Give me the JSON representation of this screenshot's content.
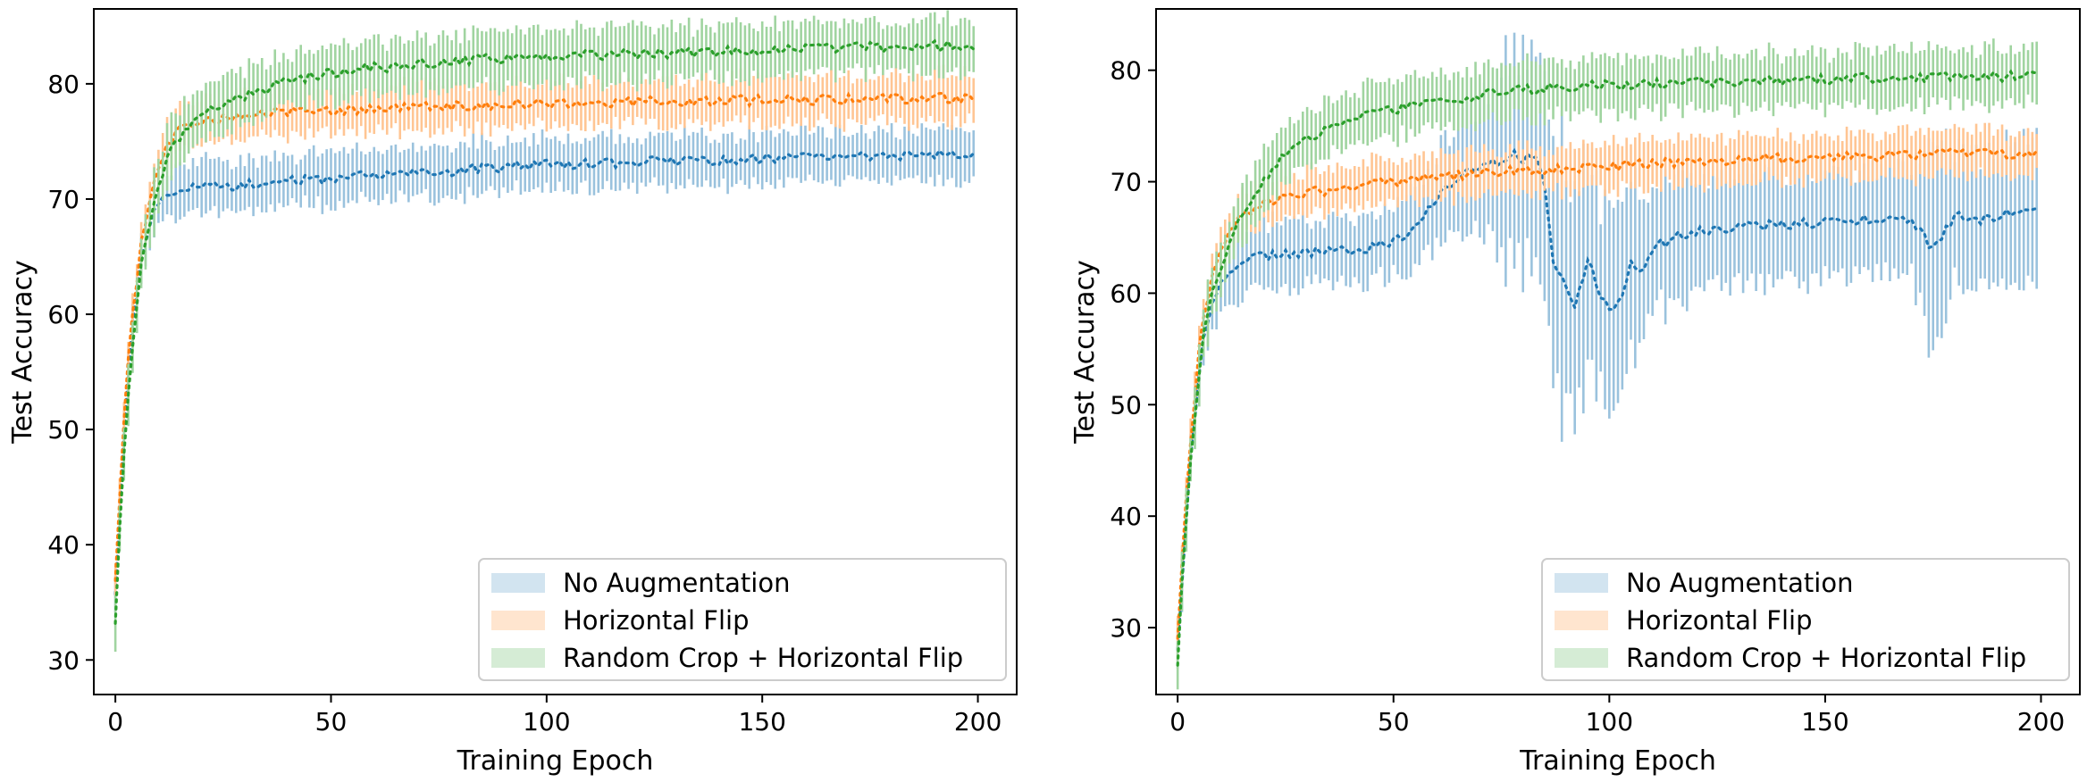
{
  "chart_data": [
    {
      "type": "line",
      "xlabel": "Training Epoch",
      "ylabel": "Test Accuracy",
      "xlim": [
        -5,
        209
      ],
      "ylim": [
        27,
        86.5
      ],
      "xticks": [
        0,
        50,
        100,
        150,
        200
      ],
      "yticks": [
        30,
        40,
        50,
        60,
        70,
        80
      ],
      "grid": false,
      "legend_position": "lower-right",
      "series": [
        {
          "name": "No Augmentation",
          "color": "#1f77b4",
          "x": [
            0,
            1,
            2,
            3,
            4,
            5,
            6,
            8,
            10,
            12,
            15,
            20,
            30,
            40,
            50,
            60,
            70,
            80,
            90,
            100,
            110,
            120,
            130,
            140,
            150,
            160,
            170,
            180,
            190,
            199
          ],
          "mean": [
            36,
            43,
            50,
            55,
            59,
            62,
            65,
            68,
            70,
            70.5,
            70.7,
            71,
            71.3,
            71.5,
            71.8,
            72,
            72.2,
            72.5,
            72.8,
            73,
            73.1,
            73.2,
            73.3,
            73.4,
            73.5,
            73.6,
            73.7,
            73.8,
            73.9,
            74
          ],
          "spread": [
            1.5,
            1.5,
            1.5,
            1.5,
            1.5,
            1.5,
            1.8,
            2,
            2,
            2.2,
            2.2,
            2.2,
            2.2,
            2.2,
            2.2,
            2.2,
            2.2,
            2.2,
            2.2,
            2.2,
            2.2,
            2.2,
            2.2,
            2.2,
            2.2,
            2.2,
            2.2,
            2.2,
            2.2,
            2.2
          ]
        },
        {
          "name": "Horizontal Flip",
          "color": "#ff7f0e",
          "x": [
            0,
            1,
            2,
            3,
            4,
            5,
            6,
            8,
            10,
            12,
            15,
            20,
            30,
            40,
            50,
            60,
            70,
            80,
            90,
            100,
            110,
            120,
            130,
            140,
            150,
            160,
            170,
            180,
            190,
            199
          ],
          "mean": [
            37,
            44,
            51,
            56,
            60,
            63,
            66,
            70,
            73,
            74.5,
            76,
            76.8,
            77.2,
            77.5,
            77.7,
            77.9,
            78,
            78.1,
            78.2,
            78.3,
            78.4,
            78.4,
            78.5,
            78.5,
            78.6,
            78.6,
            78.7,
            78.7,
            78.8,
            78.8
          ],
          "spread": [
            1.5,
            1.5,
            1.5,
            1.5,
            1.5,
            1.5,
            1.8,
            2,
            2,
            2,
            2,
            2,
            2,
            2,
            2,
            2,
            2,
            2,
            2,
            2,
            2,
            2,
            2,
            2,
            2,
            2,
            2,
            2,
            2,
            2
          ]
        },
        {
          "name": "Random Crop + Horizontal Flip",
          "color": "#2ca02c",
          "x": [
            0,
            1,
            2,
            3,
            4,
            5,
            6,
            8,
            10,
            12,
            15,
            20,
            30,
            40,
            50,
            60,
            70,
            80,
            90,
            100,
            110,
            120,
            130,
            140,
            150,
            160,
            170,
            180,
            190,
            199
          ],
          "mean": [
            33,
            41,
            48,
            53,
            57,
            61,
            64,
            68,
            71,
            73.5,
            75.5,
            77.5,
            79,
            80.2,
            81,
            81.4,
            81.7,
            82,
            82.2,
            82.4,
            82.5,
            82.6,
            82.7,
            82.8,
            82.9,
            83,
            83.1,
            83.2,
            83.3,
            83.3
          ],
          "spread": [
            3,
            2.5,
            2.5,
            2.5,
            2.5,
            2.5,
            2.5,
            2.5,
            2.5,
            2.5,
            2.5,
            2.3,
            2.3,
            2.3,
            2.3,
            2.3,
            2.3,
            2.3,
            2.3,
            2.3,
            2.3,
            2.3,
            2.3,
            2.3,
            2.3,
            2.3,
            2.3,
            2.3,
            2.3,
            2.3
          ]
        }
      ]
    },
    {
      "type": "line",
      "xlabel": "Training Epoch",
      "ylabel": "Test Accuracy",
      "xlim": [
        -5,
        209
      ],
      "ylim": [
        24,
        85.5
      ],
      "xticks": [
        0,
        50,
        100,
        150,
        200
      ],
      "yticks": [
        30,
        40,
        50,
        60,
        70,
        80
      ],
      "grid": false,
      "legend_position": "lower-right",
      "series": [
        {
          "name": "No Augmentation",
          "color": "#1f77b4",
          "x": [
            0,
            1,
            2,
            3,
            4,
            5,
            6,
            8,
            10,
            12,
            15,
            20,
            25,
            30,
            40,
            50,
            55,
            60,
            65,
            70,
            73,
            75,
            78,
            80,
            83,
            85,
            87,
            90,
            92,
            95,
            98,
            100,
            103,
            105,
            108,
            110,
            115,
            120,
            125,
            130,
            140,
            150,
            160,
            170,
            175,
            180,
            185,
            190,
            195,
            199
          ],
          "mean": [
            28,
            34,
            40,
            45,
            49,
            53,
            56,
            59,
            61,
            62,
            62.8,
            63.3,
            63.5,
            63.6,
            63.8,
            64.5,
            66,
            68.5,
            70.5,
            71.5,
            72,
            71.5,
            72.5,
            72,
            72.3,
            70,
            63,
            61,
            59,
            63,
            60,
            58.5,
            60,
            63,
            62,
            64,
            65,
            65.5,
            65.8,
            66,
            66.2,
            66.4,
            66.6,
            66.5,
            64,
            67,
            66.5,
            67,
            67.5,
            68
          ],
          "spread": [
            2,
            2,
            2,
            2,
            2,
            2,
            2,
            2.5,
            2.5,
            3,
            3,
            3,
            3,
            3,
            3,
            3,
            3.5,
            4,
            5,
            6,
            7,
            10,
            9,
            10,
            9,
            10,
            12,
            12,
            10,
            10,
            8,
            9,
            8,
            8,
            7,
            6,
            6,
            5,
            5,
            5,
            5,
            5,
            5,
            5,
            9,
            6,
            6,
            7,
            7,
            6
          ]
        },
        {
          "name": "Horizontal Flip",
          "color": "#ff7f0e",
          "x": [
            0,
            1,
            2,
            3,
            4,
            5,
            6,
            8,
            10,
            12,
            15,
            20,
            25,
            30,
            40,
            50,
            60,
            70,
            80,
            90,
            100,
            110,
            120,
            130,
            140,
            150,
            160,
            170,
            180,
            190,
            199
          ],
          "mean": [
            29,
            36,
            42,
            47,
            51,
            55,
            58,
            61.5,
            64,
            65.5,
            67,
            68,
            68.7,
            69,
            69.5,
            70,
            70.4,
            70.7,
            71,
            71.2,
            71.4,
            71.6,
            71.8,
            72,
            72.1,
            72.2,
            72.3,
            72.4,
            72.5,
            72.5,
            72.6
          ],
          "spread": [
            2,
            2,
            2,
            2,
            2,
            2,
            2,
            2,
            2,
            2,
            2,
            2,
            2,
            2,
            2,
            2,
            2,
            2,
            2,
            2,
            2,
            2,
            2,
            2,
            2,
            2,
            2,
            2,
            2,
            2,
            2
          ]
        },
        {
          "name": "Random Crop + Horizontal Flip",
          "color": "#2ca02c",
          "x": [
            0,
            1,
            2,
            3,
            4,
            5,
            6,
            8,
            10,
            12,
            15,
            20,
            25,
            30,
            40,
            50,
            60,
            70,
            80,
            90,
            100,
            110,
            120,
            130,
            140,
            150,
            160,
            170,
            180,
            190,
            199
          ],
          "mean": [
            27,
            34,
            40,
            45,
            49,
            53,
            56,
            60,
            62.5,
            64.5,
            67,
            70,
            72.5,
            74,
            75.5,
            76.5,
            77.2,
            77.8,
            78.2,
            78.5,
            78.7,
            78.8,
            78.9,
            79,
            79.1,
            79.2,
            79.3,
            79.3,
            79.4,
            79.4,
            79.5
          ],
          "spread": [
            2.5,
            2.5,
            2.5,
            2.5,
            2.5,
            2.5,
            2.5,
            2.5,
            2.5,
            2.5,
            2.5,
            2.5,
            2.5,
            2.5,
            2.5,
            2.5,
            2.5,
            2.5,
            2.5,
            2.5,
            2.5,
            2.5,
            2.5,
            2.5,
            2.5,
            2.5,
            2.5,
            2.5,
            2.5,
            2.5,
            2.5
          ]
        }
      ]
    }
  ]
}
